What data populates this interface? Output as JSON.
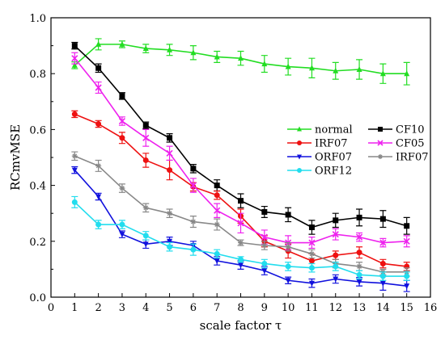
{
  "chart_data": {
    "type": "line",
    "xlabel": "scale factor τ",
    "ylabel": "RCmvMSE",
    "xlim": [
      0,
      16
    ],
    "ylim": [
      0.0,
      1.0
    ],
    "xticks": [
      0,
      1,
      2,
      3,
      4,
      5,
      6,
      7,
      8,
      9,
      10,
      11,
      12,
      13,
      14,
      15,
      16
    ],
    "yticks": [
      "0.0",
      "0.2",
      "0.4",
      "0.6",
      "0.8",
      "1.0"
    ],
    "grid": false,
    "legend_placement": "center-right",
    "x": [
      1,
      2,
      3,
      4,
      5,
      6,
      7,
      8,
      9,
      10,
      11,
      12,
      13,
      14,
      15
    ],
    "series": [
      {
        "name": "normal",
        "color": "#22dd22",
        "marker": "triangle-up",
        "values": [
          0.83,
          0.905,
          0.905,
          0.89,
          0.885,
          0.875,
          0.86,
          0.855,
          0.835,
          0.825,
          0.82,
          0.81,
          0.815,
          0.8,
          0.8
        ],
        "errors": [
          0.012,
          0.02,
          0.012,
          0.015,
          0.02,
          0.025,
          0.02,
          0.025,
          0.03,
          0.03,
          0.035,
          0.03,
          0.035,
          0.035,
          0.04
        ]
      },
      {
        "name": "CF10",
        "color": "#000000",
        "marker": "square",
        "values": [
          0.9,
          0.82,
          0.72,
          0.615,
          0.57,
          0.46,
          0.4,
          0.345,
          0.305,
          0.295,
          0.25,
          0.275,
          0.285,
          0.28,
          0.255
        ],
        "errors": [
          0.012,
          0.015,
          0.012,
          0.012,
          0.015,
          0.015,
          0.02,
          0.025,
          0.02,
          0.025,
          0.025,
          0.025,
          0.03,
          0.03,
          0.03
        ]
      },
      {
        "name": "IRF07",
        "color": "#ee1111",
        "marker": "circle",
        "values": [
          0.655,
          0.62,
          0.57,
          0.49,
          0.455,
          0.395,
          0.365,
          0.29,
          0.2,
          0.165,
          0.13,
          0.15,
          0.16,
          0.12,
          0.11
        ],
        "errors": [
          0.012,
          0.012,
          0.02,
          0.025,
          0.035,
          0.015,
          0.015,
          0.025,
          0.02,
          0.025,
          0.025,
          0.015,
          0.02,
          0.015,
          0.015
        ]
      },
      {
        "name": "CF05",
        "color": "#ee22ee",
        "marker": "cross",
        "values": [
          0.855,
          0.75,
          0.63,
          0.57,
          0.515,
          0.4,
          0.31,
          0.265,
          0.215,
          0.195,
          0.195,
          0.225,
          0.215,
          0.195,
          0.2
        ],
        "errors": [
          0.02,
          0.02,
          0.015,
          0.03,
          0.025,
          0.025,
          0.025,
          0.035,
          0.025,
          0.025,
          0.02,
          0.02,
          0.015,
          0.015,
          0.02
        ]
      },
      {
        "name": "ORF07",
        "color": "#1111dd",
        "marker": "triangle-down",
        "values": [
          0.455,
          0.36,
          0.225,
          0.19,
          0.2,
          0.185,
          0.13,
          0.115,
          0.095,
          0.06,
          0.05,
          0.065,
          0.055,
          0.05,
          0.04
        ],
        "errors": [
          0.012,
          0.012,
          0.012,
          0.015,
          0.015,
          0.015,
          0.015,
          0.015,
          0.015,
          0.012,
          0.015,
          0.015,
          0.015,
          0.025,
          0.02
        ]
      },
      {
        "name": "IRF07",
        "color": "#888888",
        "marker": "star",
        "values": [
          0.505,
          0.47,
          0.39,
          0.32,
          0.3,
          0.27,
          0.26,
          0.195,
          0.185,
          0.18,
          0.155,
          0.12,
          0.11,
          0.09,
          0.09
        ],
        "errors": [
          0.015,
          0.02,
          0.015,
          0.015,
          0.015,
          0.02,
          0.02,
          0.01,
          0.015,
          0.015,
          0.015,
          0.015,
          0.015,
          0.01,
          0.015
        ]
      },
      {
        "name": "ORF12",
        "color": "#22ddee",
        "marker": "circle",
        "values": [
          0.34,
          0.26,
          0.26,
          0.22,
          0.18,
          0.17,
          0.155,
          0.135,
          0.12,
          0.11,
          0.105,
          0.11,
          0.08,
          0.075,
          0.075
        ],
        "errors": [
          0.02,
          0.015,
          0.015,
          0.015,
          0.015,
          0.02,
          0.015,
          0.01,
          0.015,
          0.015,
          0.015,
          0.015,
          0.015,
          0.015,
          0.015
        ]
      }
    ]
  }
}
